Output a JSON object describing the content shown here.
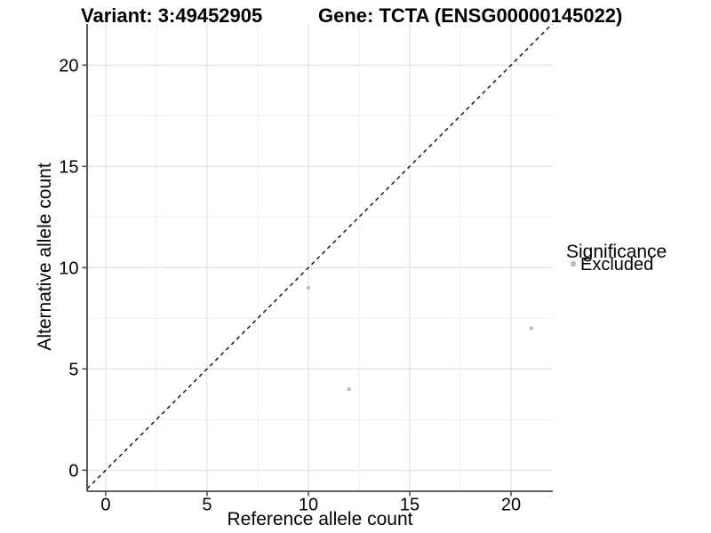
{
  "header": {
    "note": "scatter plot of alternative vs reference allele counts with identity line"
  },
  "chart_data": {
    "type": "scatter",
    "titles": [
      "Variant: 3:49452905",
      "Gene: TCTA (ENSG00000145022)"
    ],
    "xlabel": "Reference allele count",
    "ylabel": "Alternative allele count",
    "xlim": [
      -0.92,
      22.06
    ],
    "ylim": [
      -1.04,
      22.03
    ],
    "x_major_ticks": [
      0,
      5,
      10,
      15,
      20
    ],
    "y_major_ticks": [
      0,
      5,
      10,
      15,
      20
    ],
    "x_minor_gridlines": [
      2.5,
      7.5,
      12.5,
      17.5
    ],
    "y_minor_gridlines": [
      2.5,
      7.5,
      12.5,
      17.5
    ],
    "grid": "major+minor",
    "legend_position": "right",
    "series": [
      {
        "name": "Excluded",
        "marker_color": "#bebebe",
        "points": [
          {
            "x": 10,
            "y": 9
          },
          {
            "x": 12,
            "y": 4
          },
          {
            "x": 21,
            "y": 7
          }
        ]
      }
    ],
    "identity_line": {
      "equation": "y = x",
      "style": "dashed",
      "color": "#1a1a1a",
      "from": [
        -0.92,
        -0.92
      ],
      "to": [
        22.03,
        22.03
      ]
    }
  },
  "legend": {
    "title": "Significance",
    "items": [
      {
        "label": "Excluded",
        "color": "#bebebe"
      }
    ]
  },
  "colors": {
    "background": "#ffffff",
    "grid_major": "#e3e3e3",
    "grid_minor": "#efefef",
    "axis_line": "#4a4a4a",
    "tick_text": "#1a1a1a",
    "point": "#bebebe"
  }
}
